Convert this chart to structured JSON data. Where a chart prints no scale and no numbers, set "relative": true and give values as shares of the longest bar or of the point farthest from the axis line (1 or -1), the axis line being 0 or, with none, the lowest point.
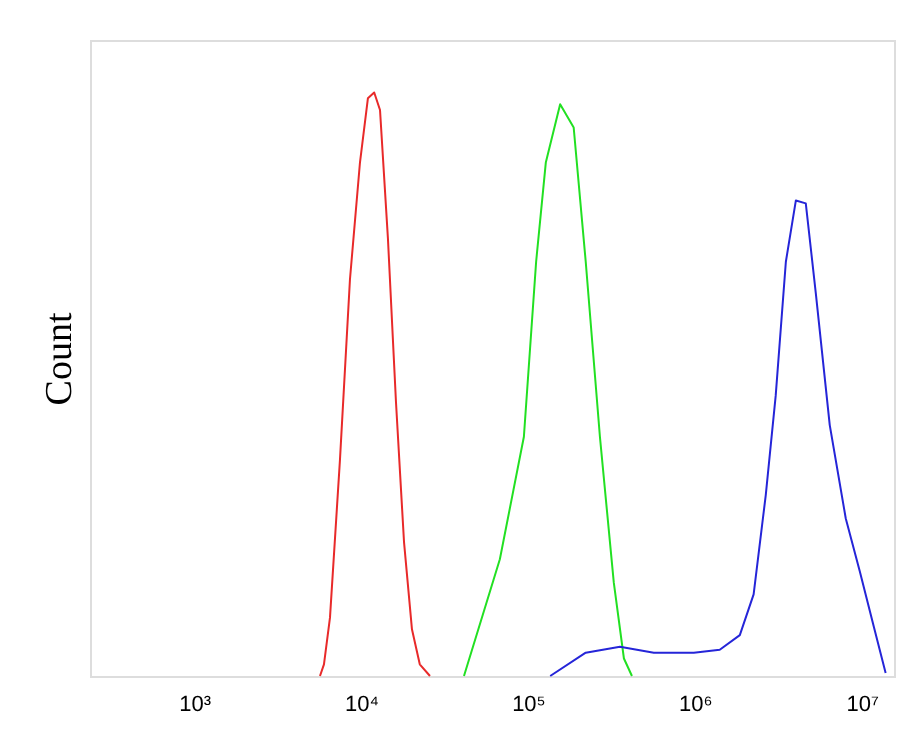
{
  "chart_data": {
    "type": "line",
    "ylabel": "Count",
    "relative": true,
    "log": "x",
    "xlim": [
      238,
      15600000
    ],
    "xticks": [
      {
        "value": 1000,
        "label": "10³"
      },
      {
        "value": 10000,
        "label": "10⁴"
      },
      {
        "value": 100000,
        "label": "10⁵"
      },
      {
        "value": 1000000,
        "label": "10⁶"
      },
      {
        "value": 10000000,
        "label": "10⁷"
      }
    ],
    "grid": false,
    "legend": false,
    "marker": "none",
    "line_style": "solid",
    "series": [
      {
        "color": "#e82a2a",
        "x": [
          5680,
          6000,
          6520,
          7480,
          8590,
          9860,
          11000,
          12000,
          13000,
          14500,
          16200,
          18100,
          20200,
          22500,
          25900
        ],
        "values": [
          0,
          0.02,
          0.1,
          0.37,
          0.68,
          0.88,
          0.99,
          1.0,
          0.97,
          0.75,
          0.47,
          0.23,
          0.08,
          0.02,
          0
        ]
      },
      {
        "color": "#22e022",
        "x": [
          41400,
          67900,
          94600,
          112000,
          128000,
          156000,
          188000,
          222000,
          270000,
          327000,
          376000,
          420000
        ],
        "values": [
          0,
          0.2,
          0.41,
          0.71,
          0.88,
          0.98,
          0.94,
          0.71,
          0.41,
          0.16,
          0.03,
          0
        ]
      },
      {
        "color": "#2525d8",
        "x": [
          136000,
          222000,
          356000,
          568000,
          986000,
          1410000,
          1860000,
          2250000,
          2660000,
          3050000,
          3510000,
          4030000,
          4620000,
          5310000,
          6430000,
          8020000,
          9720000,
          11800000,
          13900000
        ],
        "values": [
          0,
          0.04,
          0.05,
          0.04,
          0.04,
          0.045,
          0.07,
          0.14,
          0.31,
          0.48,
          0.71,
          0.815,
          0.81,
          0.655,
          0.43,
          0.27,
          0.18,
          0.085,
          0.005
        ]
      }
    ]
  }
}
